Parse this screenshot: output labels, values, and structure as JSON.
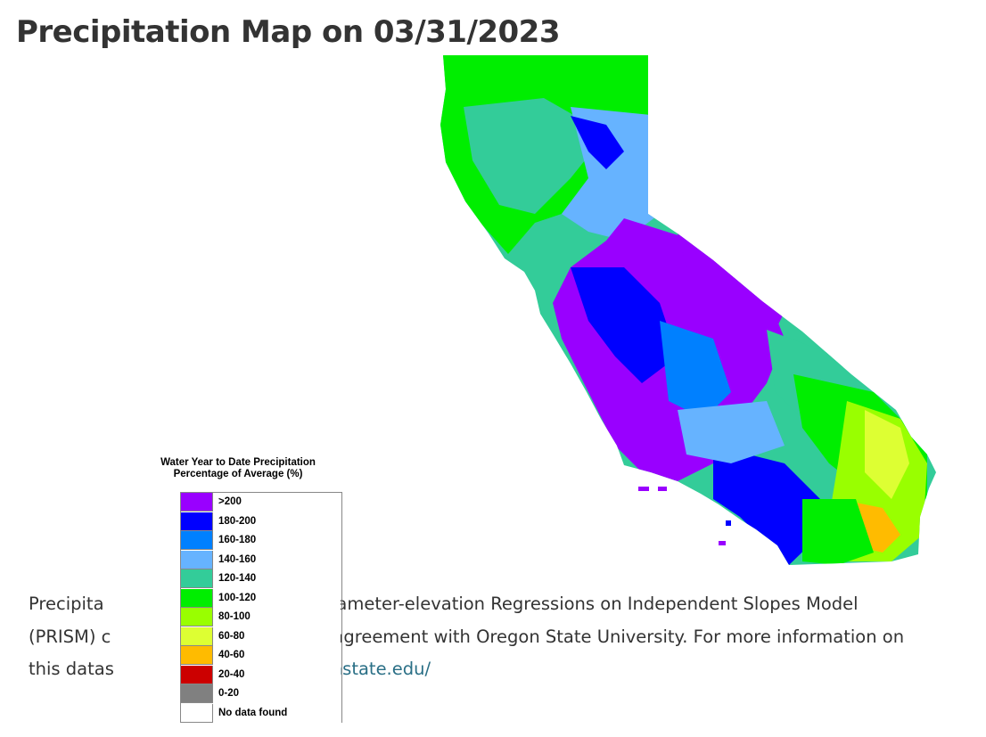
{
  "page": {
    "title": "Precipitation Map on 03/31/2023"
  },
  "caption": {
    "line1_left": "Precipita",
    "line1_right": "Parameter-elevation Regressions on Independent Slopes Model",
    "line2_left": "(PRISM) c",
    "line2_right": "ig agreement with Oregon State University. For more information on",
    "line3_left": "this datas",
    "line3_link": "onstate.edu/"
  },
  "legend": {
    "title_line1": "Water Year to Date Precipitation",
    "title_line2": "Percentage of Average (%)",
    "items": [
      {
        "label": ">200",
        "color": "#9900ff"
      },
      {
        "label": "180-200",
        "color": "#0000ff"
      },
      {
        "label": "160-180",
        "color": "#0080ff"
      },
      {
        "label": "140-160",
        "color": "#66b3ff"
      },
      {
        "label": "120-140",
        "color": "#33cc99"
      },
      {
        "label": "100-120",
        "color": "#00ee00"
      },
      {
        "label": "80-100",
        "color": "#99ff00"
      },
      {
        "label": "60-80",
        "color": "#ddff33"
      },
      {
        "label": "40-60",
        "color": "#ffbb00"
      },
      {
        "label": "20-40",
        "color": "#cc0000"
      },
      {
        "label": "0-20",
        "color": "#808080"
      },
      {
        "label": "No data found",
        "color": "#ffffff"
      }
    ]
  },
  "map": {
    "region": "California"
  }
}
